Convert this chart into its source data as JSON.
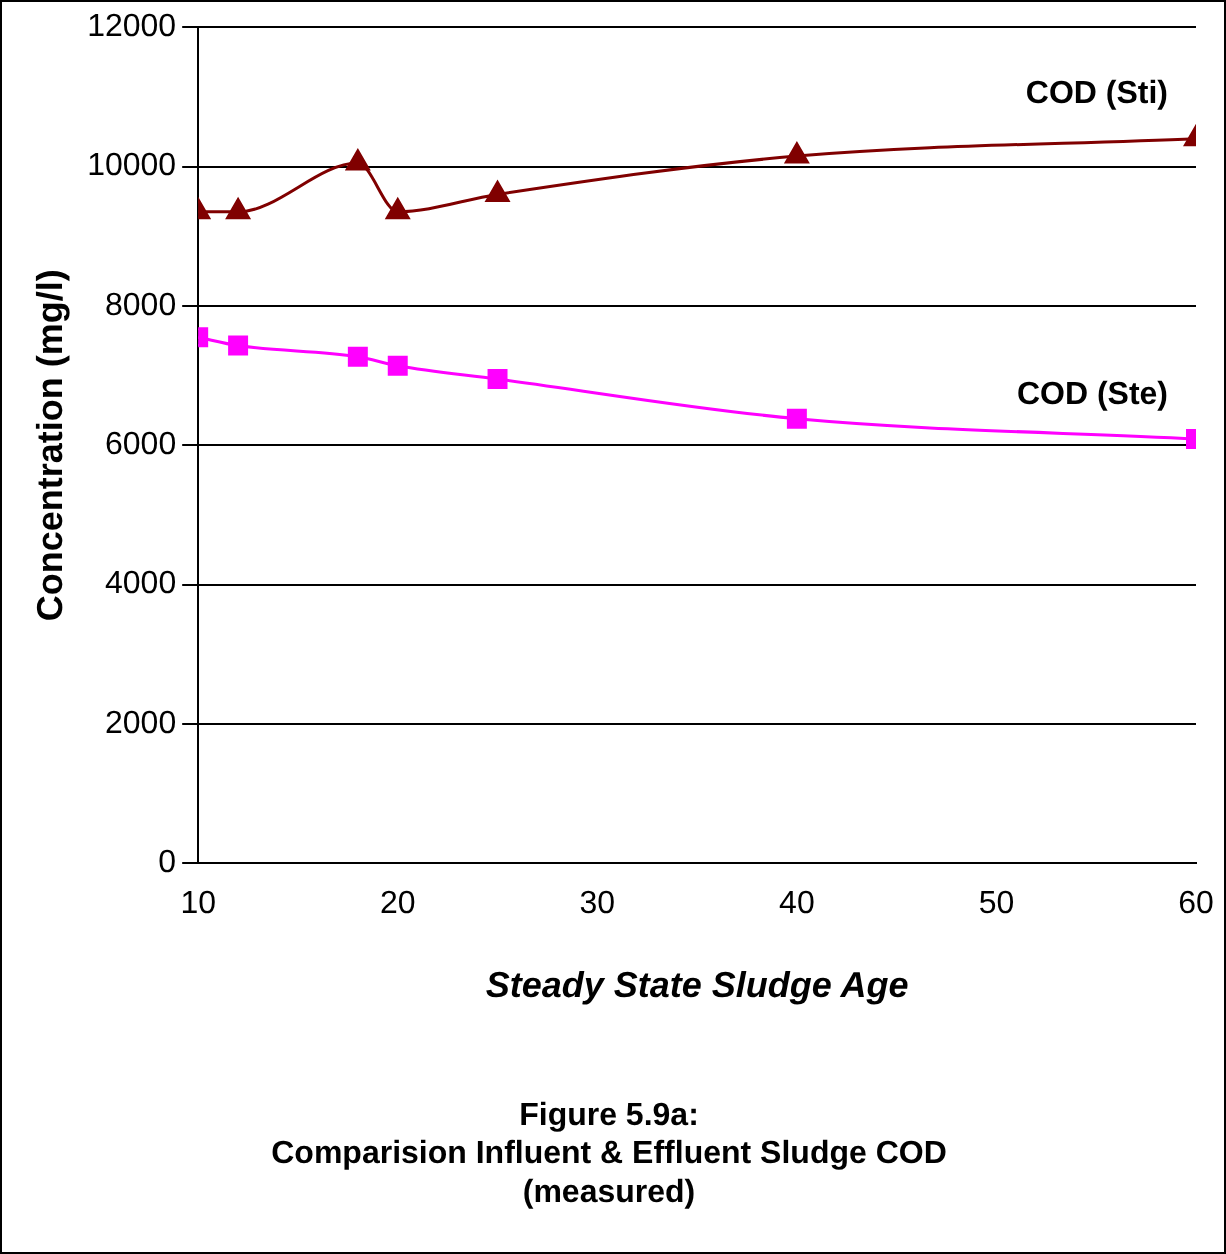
{
  "chart_data": {
    "type": "line",
    "title": "Figure 5.9a:\nComparision Influent & Effluent Sludge COD\n(measured)",
    "xlabel": "Steady State Sludge Age",
    "ylabel": "Concentration (mg/l)",
    "x": [
      10,
      12,
      18,
      20,
      25,
      40,
      60
    ],
    "series": [
      {
        "name": "COD (Sti)",
        "color": "#800000",
        "marker": "triangle",
        "values": [
          9350,
          9350,
          10050,
          9350,
          9600,
          10150,
          10400
        ]
      },
      {
        "name": "COD (Ste)",
        "color": "#ff00ff",
        "marker": "square",
        "values": [
          7550,
          7430,
          7270,
          7140,
          6950,
          6380,
          6090
        ]
      }
    ],
    "xlim": [
      10,
      60
    ],
    "xticks": [
      10,
      20,
      30,
      40,
      50,
      60
    ],
    "ylim": [
      0,
      12000
    ],
    "yticks": [
      0,
      2000,
      4000,
      6000,
      8000,
      10000,
      12000
    ],
    "grid": "y",
    "legend": false
  }
}
